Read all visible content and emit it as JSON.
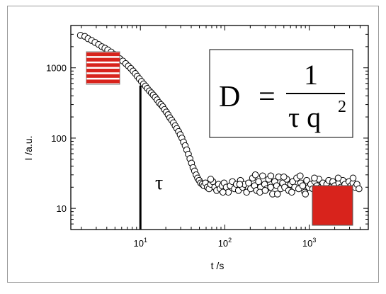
{
  "chart_data": {
    "type": "scatter",
    "xlabel": "t /s",
    "ylabel": "I  /a.u.",
    "xscale": "log",
    "yscale": "log",
    "xlim": [
      1.5,
      5000
    ],
    "ylim": [
      5,
      4000
    ],
    "x_ticks": [
      {
        "value": 10,
        "base": "10",
        "exp": "1"
      },
      {
        "value": 100,
        "base": "10",
        "exp": "2"
      },
      {
        "value": 1000,
        "base": "10",
        "exp": "3"
      }
    ],
    "y_ticks": [
      {
        "value": 10,
        "label": "10"
      },
      {
        "value": 100,
        "label": "100"
      },
      {
        "value": 1000,
        "label": "1000"
      }
    ],
    "marker": "open-circle",
    "tau_marker": {
      "x": 10,
      "label": "τ"
    },
    "formula": {
      "lhs": "D",
      "equals": "=",
      "numerator": "1",
      "denominator": "τ q",
      "exponent": "2"
    },
    "icons": [
      "striped-layers-icon",
      "solid-block-icon"
    ],
    "colors": {
      "accent": "#d8231c",
      "marker_fill": "#ffffff",
      "line": "#000000"
    },
    "series": [
      {
        "points": [
          [
            1.95,
            2900
          ],
          [
            2.2,
            2800
          ],
          [
            2.4,
            2600
          ],
          [
            2.65,
            2450
          ],
          [
            2.9,
            2300
          ],
          [
            3.2,
            2150
          ],
          [
            3.5,
            2000
          ],
          [
            3.8,
            1900
          ],
          [
            4.1,
            1800
          ],
          [
            4.5,
            1680
          ],
          [
            4.9,
            1560
          ],
          [
            5.3,
            1450
          ],
          [
            5.7,
            1350
          ],
          [
            6.2,
            1250
          ],
          [
            6.7,
            1150
          ],
          [
            7.2,
            1060
          ],
          [
            7.7,
            980
          ],
          [
            8.2,
            900
          ],
          [
            8.7,
            830
          ],
          [
            9.2,
            760
          ],
          [
            9.7,
            700
          ],
          [
            10.3,
            640
          ],
          [
            10.9,
            590
          ],
          [
            11.5,
            550
          ],
          [
            12.1,
            510
          ],
          [
            12.8,
            470
          ],
          [
            13.5,
            440
          ],
          [
            14.2,
            410
          ],
          [
            15,
            380
          ],
          [
            15.8,
            350
          ],
          [
            16.6,
            320
          ],
          [
            17.5,
            300
          ],
          [
            18.4,
            280
          ],
          [
            19.3,
            255
          ],
          [
            20.3,
            235
          ],
          [
            21.3,
            215
          ],
          [
            22.3,
            195
          ],
          [
            23.5,
            180
          ],
          [
            24.6,
            165
          ],
          [
            25.8,
            150
          ],
          [
            27,
            137
          ],
          [
            28.3,
            124
          ],
          [
            29.6,
            112
          ],
          [
            31,
            100
          ],
          [
            32.4,
            88
          ],
          [
            33.9,
            78
          ],
          [
            35.4,
            68
          ],
          [
            37,
            59
          ],
          [
            38.6,
            51
          ],
          [
            40.3,
            44
          ],
          [
            42,
            38
          ],
          [
            43.8,
            34
          ],
          [
            45.7,
            30
          ],
          [
            47.6,
            27
          ],
          [
            49.6,
            25
          ],
          [
            51.7,
            23
          ],
          [
            54,
            22
          ],
          [
            56.5,
            21
          ],
          [
            59,
            23
          ],
          [
            62,
            20
          ],
          [
            65,
            19
          ],
          [
            68,
            22
          ],
          [
            72,
            24
          ],
          [
            76,
            20
          ],
          [
            80,
            18
          ],
          [
            84,
            22
          ],
          [
            88,
            19
          ],
          [
            93,
            21
          ],
          [
            98,
            23
          ],
          [
            104,
            20
          ],
          [
            110,
            17
          ],
          [
            116,
            21
          ],
          [
            123,
            24
          ],
          [
            130,
            19
          ],
          [
            137,
            22
          ],
          [
            145,
            18
          ],
          [
            153,
            25
          ],
          [
            162,
            20
          ],
          [
            171,
            22
          ],
          [
            181,
            17
          ],
          [
            191,
            23
          ],
          [
            202,
            19
          ],
          [
            213,
            27
          ],
          [
            225,
            21
          ],
          [
            238,
            18
          ],
          [
            251,
            24
          ],
          [
            265,
            20
          ],
          [
            280,
            29
          ],
          [
            296,
            22
          ],
          [
            313,
            19
          ],
          [
            330,
            26
          ],
          [
            349,
            20
          ],
          [
            368,
            16
          ],
          [
            389,
            24
          ],
          [
            411,
            21
          ],
          [
            434,
            28
          ],
          [
            458,
            19
          ],
          [
            484,
            23
          ],
          [
            511,
            20
          ],
          [
            540,
            26
          ],
          [
            570,
            18
          ],
          [
            602,
            22
          ],
          [
            636,
            24
          ],
          [
            672,
            20
          ],
          [
            710,
            27
          ],
          [
            750,
            19
          ],
          [
            792,
            23
          ],
          [
            836,
            21
          ],
          [
            883,
            17
          ],
          [
            933,
            25
          ],
          [
            985,
            20
          ],
          [
            1040,
            22
          ],
          [
            1100,
            19
          ],
          [
            1160,
            24
          ],
          [
            1230,
            21
          ],
          [
            1300,
            26
          ],
          [
            1370,
            20
          ],
          [
            1450,
            23
          ],
          [
            1530,
            18
          ],
          [
            1610,
            22
          ],
          [
            1700,
            25
          ],
          [
            1800,
            20
          ],
          [
            1900,
            24
          ],
          [
            2000,
            21
          ],
          [
            2120,
            19
          ],
          [
            2240,
            23
          ],
          [
            2360,
            20
          ],
          [
            2500,
            25
          ],
          [
            2640,
            22
          ],
          [
            2790,
            19
          ],
          [
            2950,
            24
          ],
          [
            3110,
            21
          ],
          [
            3290,
            23
          ],
          [
            3470,
            20
          ],
          [
            3670,
            22
          ],
          [
            3880,
            19
          ],
          [
            68,
            26
          ],
          [
            95,
            17
          ],
          [
            150,
            22
          ],
          [
            230,
            30
          ],
          [
            260,
            17
          ],
          [
            300,
            18
          ],
          [
            350,
            29
          ],
          [
            420,
            16
          ],
          [
            500,
            28
          ],
          [
            620,
            17
          ],
          [
            780,
            29
          ],
          [
            900,
            16
          ],
          [
            1150,
            27
          ],
          [
            1400,
            17
          ],
          [
            1700,
            19
          ],
          [
            2200,
            27
          ],
          [
            2600,
            18
          ],
          [
            3300,
            27
          ]
        ]
      }
    ]
  }
}
